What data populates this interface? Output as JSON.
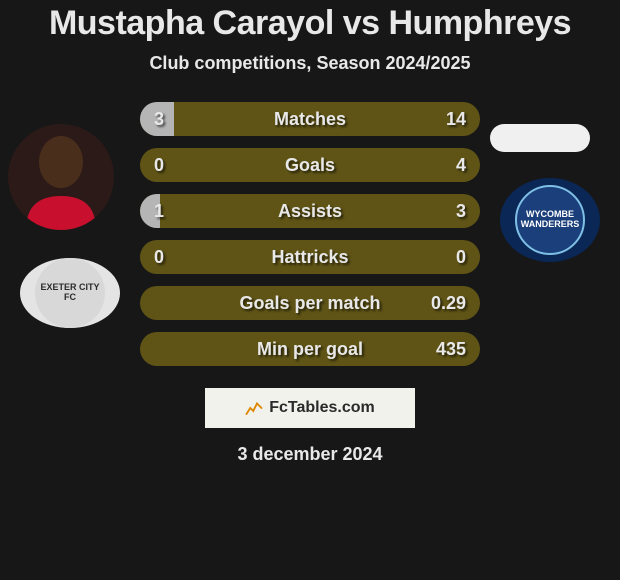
{
  "background_color": "#171717",
  "title": {
    "text": "Mustapha Carayol vs Humphreys",
    "color": "#e8e8e8"
  },
  "subtitle": {
    "text": "Club competitions, Season 2024/2025",
    "color": "#e8e8e8"
  },
  "text_color": "#e8e8e8",
  "player_left": {
    "photo_bg": "#2b1a18",
    "head_color": "#4a2e1c",
    "shirt_color": "#c8102e"
  },
  "player_right": {
    "photo_bg": "#f0f0f0"
  },
  "club_left": {
    "outer_bg": "#e4e4e4",
    "inner_bg": "#d8d8d8",
    "inner_text": "EXETER CITY FC",
    "text_color": "#2a2a2a"
  },
  "club_right": {
    "outer_bg": "#0a2755",
    "inner_bg": "#1a3f7a",
    "inner_border": "#7fbfe5",
    "inner_text": "WYCOMBE WANDERERS",
    "text_color": "#ffffff"
  },
  "bars": {
    "track_color": "#5f5416",
    "left_fill_color": "#b5b5b5",
    "right_fill_color": "#b5b5b5",
    "label_color": "#e8e8e8",
    "value_color": "#e8e8e8",
    "rows": [
      {
        "label": "Matches",
        "left_val": "3",
        "right_val": "14",
        "left_pct": 10,
        "right_pct": 0
      },
      {
        "label": "Goals",
        "left_val": "0",
        "right_val": "4",
        "left_pct": 0,
        "right_pct": 0
      },
      {
        "label": "Assists",
        "left_val": "1",
        "right_val": "3",
        "left_pct": 6,
        "right_pct": 0
      },
      {
        "label": "Hattricks",
        "left_val": "0",
        "right_val": "0",
        "left_pct": 0,
        "right_pct": 0
      },
      {
        "label": "Goals per match",
        "left_val": "",
        "right_val": "0.29",
        "left_pct": 0,
        "right_pct": 0
      },
      {
        "label": "Min per goal",
        "left_val": "",
        "right_val": "435",
        "left_pct": 0,
        "right_pct": 0
      }
    ]
  },
  "fctables": {
    "box_bg": "#f2f2ed",
    "text": "FcTables.com",
    "text_color": "#2a2a2a",
    "icon_stroke": "#dd8800"
  },
  "date": {
    "text": "3 december 2024",
    "color": "#e8e8e8"
  }
}
